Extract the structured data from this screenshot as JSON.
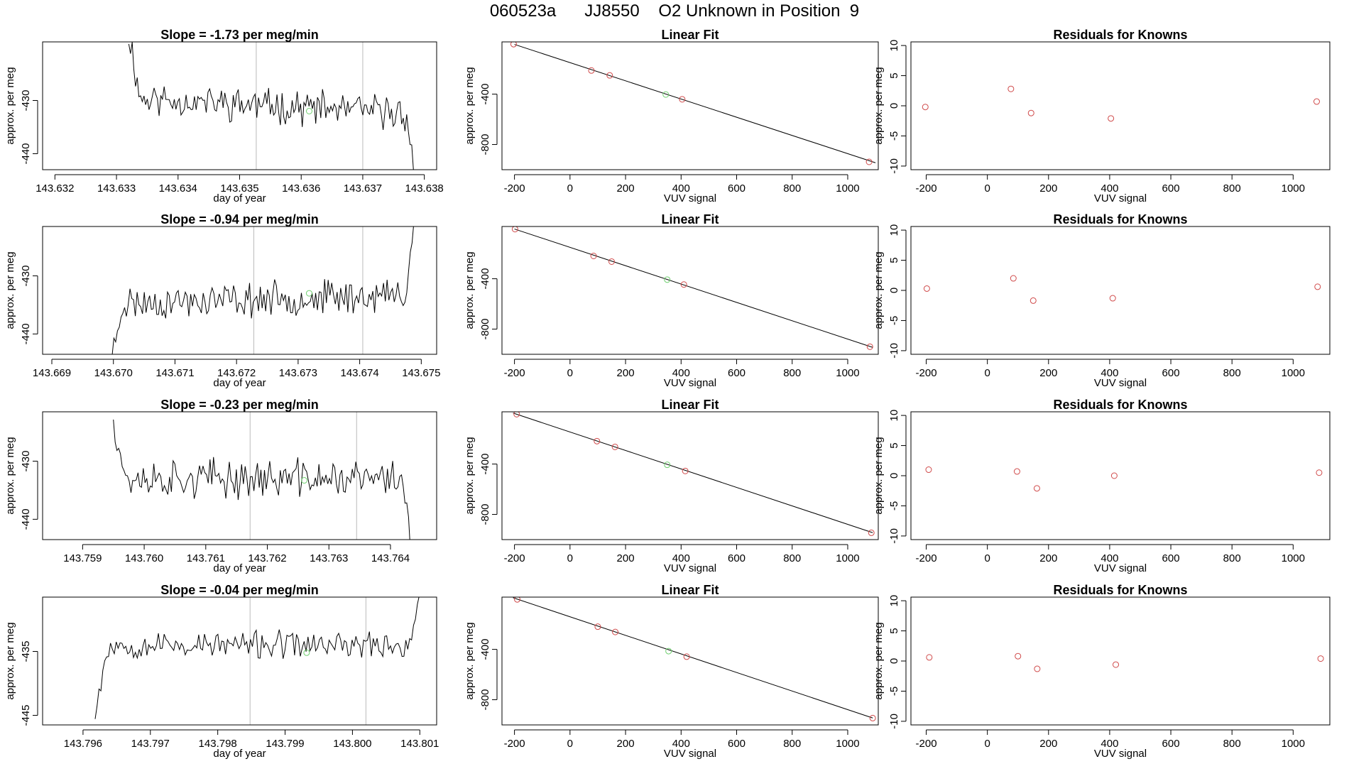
{
  "title": "060523a      JJ8550    O2 Unknown in Position  9",
  "colors": {
    "line": "#000000",
    "frame": "#000000",
    "vline": "#bbbbbb",
    "known": "#d04a4a",
    "unknown": "#6fd06f"
  },
  "chart_data": [
    {
      "type": "line",
      "panel": "timeseries",
      "row": 1,
      "title": "Slope =  -1.73  per meg/min",
      "xlabel": "day of year",
      "ylabel": "approx. per meg",
      "xlim": [
        143.6318,
        143.6382
      ],
      "ylim": [
        -443,
        -419
      ],
      "xticks": [
        143.632,
        143.633,
        143.634,
        143.635,
        143.636,
        143.637,
        143.638
      ],
      "xtick_labels": [
        "143.632",
        "143.633",
        "143.634",
        "143.635",
        "143.636",
        "143.637",
        "143.638"
      ],
      "yticks": [
        -440,
        -430
      ],
      "ytick_labels": [
        "-440",
        "-430"
      ],
      "vlines": [
        143.63527,
        143.637
      ],
      "green_point": {
        "x": 143.63613,
        "y": -432
      },
      "series": {
        "x_start": 143.6332,
        "x_end": 143.63785,
        "base": -431,
        "trend": -3,
        "noise": 2.4,
        "seed": 11,
        "lead": "high",
        "tail": "low"
      }
    },
    {
      "type": "scatter",
      "panel": "linearfit",
      "row": 1,
      "title": "Linear Fit",
      "xlabel": "VUV signal",
      "ylabel": "approx. per meg",
      "xlim": [
        -245,
        1110
      ],
      "ylim": [
        -1000,
        15
      ],
      "xticks": [
        -200,
        0,
        200,
        400,
        600,
        800,
        1000
      ],
      "xtick_labels": [
        "-200",
        "0",
        "200",
        "400",
        "600",
        "800",
        "1000"
      ],
      "yticks": [
        -800,
        -400
      ],
      "ytick_labels": [
        "-800",
        "-400"
      ],
      "fit": {
        "x": [
          -200,
          1100
        ],
        "y": [
          -5,
          -945
        ]
      },
      "known_points": [
        {
          "x": -203,
          "y": -3
        },
        {
          "x": 77,
          "y": -212
        },
        {
          "x": 143,
          "y": -251
        },
        {
          "x": 404,
          "y": -441
        },
        {
          "x": 1077,
          "y": -938
        }
      ],
      "unknown_point": {
        "x": 345,
        "y": -403
      }
    },
    {
      "type": "scatter",
      "panel": "residuals",
      "row": 1,
      "title": "Residuals for Knowns",
      "xlabel": "VUV signal",
      "ylabel": "approx. per meg",
      "xlim": [
        -250,
        1120
      ],
      "ylim": [
        -10.6,
        10.6
      ],
      "xticks": [
        -200,
        0,
        200,
        400,
        600,
        800,
        1000
      ],
      "xtick_labels": [
        "-200",
        "0",
        "200",
        "400",
        "600",
        "800",
        "1000"
      ],
      "yticks": [
        -10,
        -5,
        0,
        5,
        10
      ],
      "ytick_labels": [
        "-10",
        "-5",
        "0",
        "5",
        "10"
      ],
      "points": [
        {
          "x": -203,
          "y": -0.2
        },
        {
          "x": 77,
          "y": 2.8
        },
        {
          "x": 143,
          "y": -1.2
        },
        {
          "x": 404,
          "y": -2.1
        },
        {
          "x": 1077,
          "y": 0.7
        }
      ]
    },
    {
      "type": "line",
      "panel": "timeseries",
      "row": 2,
      "title": "Slope =  -0.94  per meg/min",
      "xlabel": "day of year",
      "ylabel": "approx. per meg",
      "xlim": [
        143.66885,
        143.67525
      ],
      "ylim": [
        -443.5,
        -421.5
      ],
      "xticks": [
        143.669,
        143.67,
        143.671,
        143.672,
        143.673,
        143.674,
        143.675
      ],
      "xtick_labels": [
        "143.669",
        "143.670",
        "143.671",
        "143.672",
        "143.673",
        "143.674",
        "143.675"
      ],
      "yticks": [
        -440,
        -430
      ],
      "ytick_labels": [
        "-440",
        "-430"
      ],
      "vlines": [
        143.67228,
        143.67405
      ],
      "green_point": {
        "x": 143.67318,
        "y": -433
      },
      "series": {
        "x_start": 143.66995,
        "x_end": 143.67488,
        "base": -434,
        "trend": 1.5,
        "noise": 2.2,
        "seed": 23,
        "lead": "low",
        "tail": "high"
      }
    },
    {
      "type": "scatter",
      "panel": "linearfit",
      "row": 2,
      "title": "Linear Fit",
      "xlabel": "VUV signal",
      "ylabel": "approx. per meg",
      "xlim": [
        -245,
        1110
      ],
      "ylim": [
        -1000,
        15
      ],
      "xticks": [
        -200,
        0,
        200,
        400,
        600,
        800,
        1000
      ],
      "xtick_labels": [
        "-200",
        "0",
        "200",
        "400",
        "600",
        "800",
        "1000"
      ],
      "yticks": [
        -800,
        -400
      ],
      "ytick_labels": [
        "-800",
        "-400"
      ],
      "fit": {
        "x": [
          -200,
          1090
        ],
        "y": [
          -5,
          -945
        ]
      },
      "known_points": [
        {
          "x": -198,
          "y": -6
        },
        {
          "x": 85,
          "y": -219
        },
        {
          "x": 150,
          "y": -264
        },
        {
          "x": 410,
          "y": -446
        },
        {
          "x": 1080,
          "y": -940
        }
      ],
      "unknown_point": {
        "x": 350,
        "y": -407
      }
    },
    {
      "type": "scatter",
      "panel": "residuals",
      "row": 2,
      "title": "Residuals for Knowns",
      "xlabel": "VUV signal",
      "ylabel": "approx. per meg",
      "xlim": [
        -250,
        1120
      ],
      "ylim": [
        -10.6,
        10.6
      ],
      "xticks": [
        -200,
        0,
        200,
        400,
        600,
        800,
        1000
      ],
      "xtick_labels": [
        "-200",
        "0",
        "200",
        "400",
        "600",
        "800",
        "1000"
      ],
      "yticks": [
        -10,
        -5,
        0,
        5,
        10
      ],
      "ytick_labels": [
        "-10",
        "-5",
        "0",
        "5",
        "10"
      ],
      "points": [
        {
          "x": -198,
          "y": 0.3
        },
        {
          "x": 85,
          "y": 2.0
        },
        {
          "x": 150,
          "y": -1.7
        },
        {
          "x": 410,
          "y": -1.3
        },
        {
          "x": 1080,
          "y": 0.6
        }
      ]
    },
    {
      "type": "line",
      "panel": "timeseries",
      "row": 3,
      "title": "Slope =  -0.23  per meg/min",
      "xlabel": "day of year",
      "ylabel": "approx. per meg",
      "xlim": [
        143.75835,
        143.76475
      ],
      "ylim": [
        -443.5,
        -421.5
      ],
      "xticks": [
        143.759,
        143.76,
        143.761,
        143.762,
        143.763,
        143.764
      ],
      "xtick_labels": [
        "143.759",
        "143.760",
        "143.761",
        "143.762",
        "143.763",
        "143.764"
      ],
      "yticks": [
        -440,
        -430
      ],
      "ytick_labels": [
        "-440",
        "-430"
      ],
      "vlines": [
        143.76172,
        143.76345
      ],
      "green_point": {
        "x": 143.7626,
        "y": -433.3
      },
      "series": {
        "x_start": 143.7595,
        "x_end": 143.76435,
        "base": -433,
        "trend": 0,
        "noise": 2.5,
        "seed": 37,
        "lead": "high",
        "tail": "low"
      }
    },
    {
      "type": "scatter",
      "panel": "linearfit",
      "row": 3,
      "title": "Linear Fit",
      "xlabel": "VUV signal",
      "ylabel": "approx. per meg",
      "xlim": [
        -245,
        1110
      ],
      "ylim": [
        -1000,
        15
      ],
      "xticks": [
        -200,
        0,
        200,
        400,
        600,
        800,
        1000
      ],
      "xtick_labels": [
        "-200",
        "0",
        "200",
        "400",
        "600",
        "800",
        "1000"
      ],
      "yticks": [
        -800,
        -400
      ],
      "ytick_labels": [
        "-800",
        "-400"
      ],
      "fit": {
        "x": [
          -205,
          1090
        ],
        "y": [
          5,
          -945
        ]
      },
      "known_points": [
        {
          "x": -192,
          "y": -4
        },
        {
          "x": 97,
          "y": -218
        },
        {
          "x": 162,
          "y": -264
        },
        {
          "x": 415,
          "y": -455
        },
        {
          "x": 1085,
          "y": -946
        }
      ],
      "unknown_point": {
        "x": 350,
        "y": -406
      }
    },
    {
      "type": "scatter",
      "panel": "residuals",
      "row": 3,
      "title": "Residuals for Knowns",
      "xlabel": "VUV signal",
      "ylabel": "approx. per meg",
      "xlim": [
        -250,
        1120
      ],
      "ylim": [
        -10.6,
        10.6
      ],
      "xticks": [
        -200,
        0,
        200,
        400,
        600,
        800,
        1000
      ],
      "xtick_labels": [
        "-200",
        "0",
        "200",
        "400",
        "600",
        "800",
        "1000"
      ],
      "yticks": [
        -10,
        -5,
        0,
        5,
        10
      ],
      "ytick_labels": [
        "-10",
        "-5",
        "0",
        "5",
        "10"
      ],
      "points": [
        {
          "x": -192,
          "y": 1.0
        },
        {
          "x": 97,
          "y": 0.7
        },
        {
          "x": 162,
          "y": -2.1
        },
        {
          "x": 415,
          "y": 0.0
        },
        {
          "x": 1085,
          "y": 0.5
        }
      ]
    },
    {
      "type": "line",
      "panel": "timeseries",
      "row": 4,
      "title": "Slope =  -0.04  per meg/min",
      "xlabel": "day of year",
      "ylabel": "approx. per meg",
      "xlim": [
        143.7954,
        143.80125
      ],
      "ylim": [
        -446.5,
        -426.5
      ],
      "xticks": [
        143.796,
        143.797,
        143.798,
        143.799,
        143.8,
        143.801
      ],
      "xtick_labels": [
        "143.796",
        "143.797",
        "143.798",
        "143.799",
        "143.800",
        "143.801"
      ],
      "yticks": [
        -445,
        -435
      ],
      "ytick_labels": [
        "-445",
        "-435"
      ],
      "vlines": [
        143.79848,
        143.8002
      ],
      "green_point": {
        "x": 143.79932,
        "y": -435.2
      },
      "series": {
        "x_start": 143.79618,
        "x_end": 143.80102,
        "base": -434,
        "trend": 0,
        "noise": 1.6,
        "seed": 53,
        "lead": "low",
        "tail": "high"
      }
    },
    {
      "type": "scatter",
      "panel": "linearfit",
      "row": 4,
      "title": "Linear Fit",
      "xlabel": "VUV signal",
      "ylabel": "approx. per meg",
      "xlim": [
        -245,
        1110
      ],
      "ylim": [
        -1000,
        15
      ],
      "xticks": [
        -200,
        0,
        200,
        400,
        600,
        800,
        1000
      ],
      "xtick_labels": [
        "-200",
        "0",
        "200",
        "400",
        "600",
        "800",
        "1000"
      ],
      "yticks": [
        -800,
        -400
      ],
      "ytick_labels": [
        "-800",
        "-400"
      ],
      "fit": {
        "x": [
          -205,
          1090
        ],
        "y": [
          10,
          -945
        ]
      },
      "known_points": [
        {
          "x": -190,
          "y": -3
        },
        {
          "x": 100,
          "y": -220
        },
        {
          "x": 163,
          "y": -262
        },
        {
          "x": 420,
          "y": -458
        },
        {
          "x": 1090,
          "y": -946
        }
      ],
      "unknown_point": {
        "x": 355,
        "y": -414
      }
    },
    {
      "type": "scatter",
      "panel": "residuals",
      "row": 4,
      "title": "Residuals for Knowns",
      "xlabel": "VUV signal",
      "ylabel": "approx. per meg",
      "xlim": [
        -250,
        1120
      ],
      "ylim": [
        -10.6,
        10.6
      ],
      "xticks": [
        -200,
        0,
        200,
        400,
        600,
        800,
        1000
      ],
      "xtick_labels": [
        "-200",
        "0",
        "200",
        "400",
        "600",
        "800",
        "1000"
      ],
      "yticks": [
        -10,
        -5,
        0,
        5,
        10
      ],
      "ytick_labels": [
        "-10",
        "-5",
        "0",
        "5",
        "10"
      ],
      "points": [
        {
          "x": -190,
          "y": 0.6
        },
        {
          "x": 100,
          "y": 0.8
        },
        {
          "x": 163,
          "y": -1.3
        },
        {
          "x": 420,
          "y": -0.6
        },
        {
          "x": 1090,
          "y": 0.4
        }
      ]
    }
  ]
}
